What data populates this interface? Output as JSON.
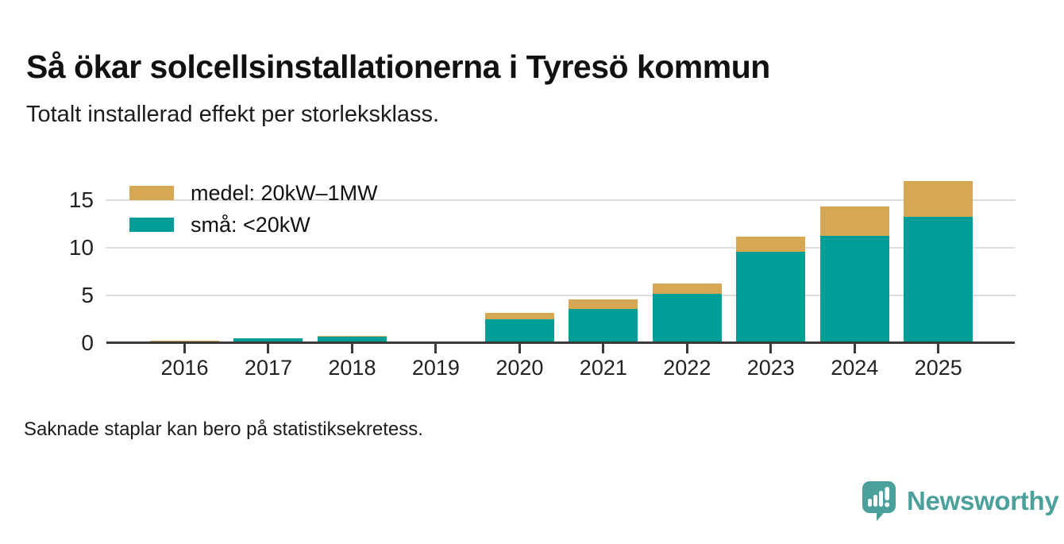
{
  "header": {
    "title": "Så ökar solcellsinstallationerna i Tyresö kommun",
    "subtitle": "Totalt installerad effekt per storleksklass."
  },
  "chart_data": {
    "type": "bar",
    "stacked": true,
    "title": "Så ökar solcellsinstallationerna i Tyresö kommun",
    "subtitle": "Totalt installerad effekt per storleksklass.",
    "categories": [
      "2016",
      "2017",
      "2018",
      "2019",
      "2020",
      "2021",
      "2022",
      "2023",
      "2024",
      "2025"
    ],
    "series": [
      {
        "name": "medel: 20kW–1MW",
        "color": "#d7a854",
        "values": [
          0.1,
          0,
          0.1,
          0,
          0.7,
          1.0,
          1.1,
          1.6,
          3.1,
          3.7
        ]
      },
      {
        "name": "små: <20kW",
        "color": "#009e96",
        "values": [
          0,
          0.3,
          0.5,
          0,
          2.3,
          3.4,
          5.0,
          9.4,
          11.1,
          13.1
        ]
      }
    ],
    "stack_note": "series listed top-segment first; 'små' is the bottom segment, 'medel' stacked on top",
    "missing_categories": [
      "2019"
    ],
    "xlabel": "",
    "ylabel": "",
    "yticks": [
      0,
      5,
      10,
      15
    ],
    "ylim": [
      0,
      17.7
    ],
    "grid": "horizontal",
    "legend_position": "top-left"
  },
  "footnote": "Saknade staplar kan bero på statistiksekretess.",
  "branding": {
    "logo_text": "Newsworthy",
    "logo_icon": "speech-bubble-bar-chart-icon",
    "logo_color": "#4ba09b"
  },
  "colors": {
    "medel": "#d7a854",
    "sma": "#009e96",
    "axis": "#3a3a3a",
    "gridline": "#dddddd",
    "text": "#111111"
  }
}
